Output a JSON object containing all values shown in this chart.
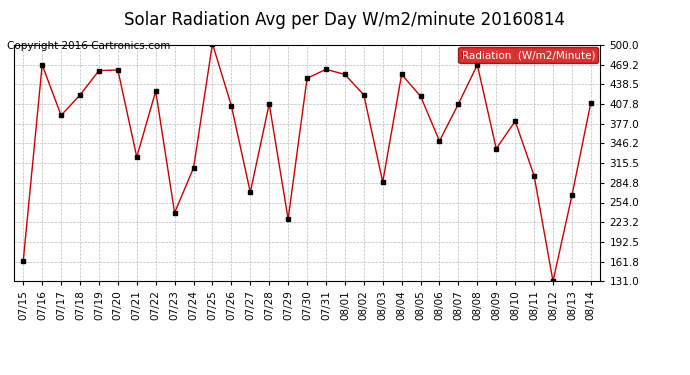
{
  "title": "Solar Radiation Avg per Day W/m2/minute 20160814",
  "copyright": "Copyright 2016 Cartronics.com",
  "legend_label": "Radiation  (W/m2/Minute)",
  "dates": [
    "07/15",
    "07/16",
    "07/17",
    "07/18",
    "07/19",
    "07/20",
    "07/21",
    "07/22",
    "07/23",
    "07/24",
    "07/25",
    "07/26",
    "07/27",
    "07/28",
    "07/29",
    "07/30",
    "07/31",
    "08/01",
    "08/02",
    "08/03",
    "08/04",
    "08/05",
    "08/06",
    "08/07",
    "08/08",
    "08/09",
    "08/10",
    "08/11",
    "08/12",
    "08/13",
    "08/14"
  ],
  "values": [
    163,
    469,
    390,
    422,
    460,
    461,
    325,
    428,
    238,
    308,
    502,
    405,
    270,
    408,
    228,
    448,
    462,
    454,
    422,
    286,
    454,
    420,
    350,
    408,
    469,
    338,
    381,
    296,
    131,
    265,
    410
  ],
  "line_color": "#cc0000",
  "marker_color": "#000000",
  "background_color": "#ffffff",
  "plot_bg_color": "#ffffff",
  "grid_color": "#bbbbbb",
  "ylim": [
    131.0,
    500.0
  ],
  "yticks": [
    500.0,
    469.2,
    438.5,
    407.8,
    377.0,
    346.2,
    315.5,
    284.8,
    254.0,
    223.2,
    192.5,
    161.8,
    131.0
  ],
  "legend_bg": "#cc0000",
  "legend_text_color": "#ffffff",
  "title_fontsize": 12,
  "copyright_fontsize": 7.5,
  "tick_fontsize": 7.5
}
